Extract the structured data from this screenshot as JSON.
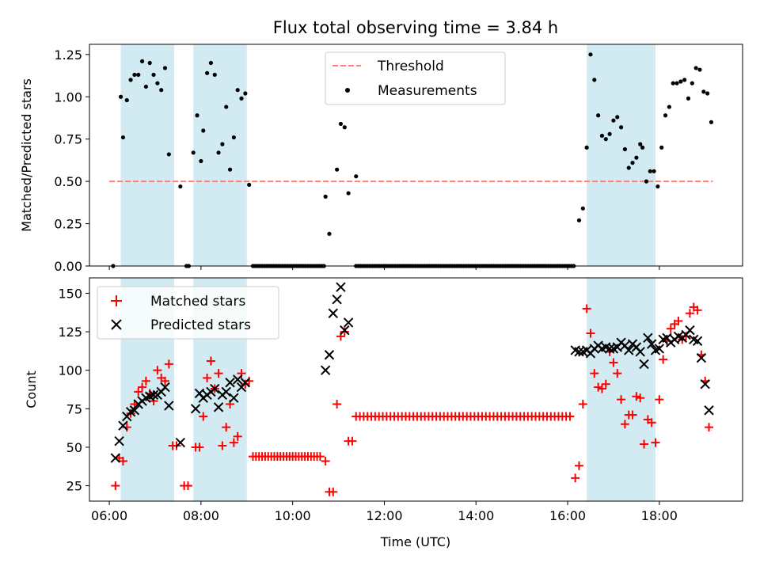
{
  "title": "Flux total observing time = 3.84 h",
  "colors": {
    "band": "#add8e6",
    "threshold": "#ff7f7f",
    "measurement": "#000000",
    "matched": "#ff0000",
    "predicted": "#000000"
  },
  "chart_data": [
    {
      "type": "scatter",
      "panel": "top",
      "ylabel": "Matched/Predicted stars",
      "ylim": [
        0,
        1.31
      ],
      "yticks": [
        "0.00",
        "0.25",
        "0.50",
        "0.75",
        "1.00",
        "1.25"
      ],
      "yticks_values": [
        0,
        0.25,
        0.5,
        0.75,
        1.0,
        1.25
      ],
      "legend_position": "top-center",
      "legend": [
        "Threshold",
        "Measurements"
      ],
      "threshold": {
        "name": "Threshold",
        "y": 0.5,
        "x": [
          "06:00",
          "19:10"
        ]
      },
      "shaded_intervals": [
        [
          "06:15",
          "07:25"
        ],
        [
          "07:50",
          "09:00"
        ],
        [
          "16:25",
          "17:55"
        ]
      ],
      "series": [
        {
          "name": "Measurements",
          "points": [
            [
              "06:05",
              0.0
            ],
            [
              "06:15",
              1.0
            ],
            [
              "06:18",
              0.76
            ],
            [
              "06:23",
              0.98
            ],
            [
              "06:28",
              1.1
            ],
            [
              "06:33",
              1.13
            ],
            [
              "06:38",
              1.13
            ],
            [
              "06:43",
              1.21
            ],
            [
              "06:48",
              1.06
            ],
            [
              "06:53",
              1.2
            ],
            [
              "06:58",
              1.13
            ],
            [
              "07:03",
              1.08
            ],
            [
              "07:08",
              1.04
            ],
            [
              "07:13",
              1.17
            ],
            [
              "07:18",
              0.66
            ],
            [
              "07:33",
              0.47
            ],
            [
              "07:41",
              0.0
            ],
            [
              "07:44",
              0.0
            ],
            [
              "07:50",
              0.67
            ],
            [
              "07:55",
              0.89
            ],
            [
              "08:00",
              0.62
            ],
            [
              "08:03",
              0.8
            ],
            [
              "08:08",
              1.14
            ],
            [
              "08:13",
              1.2
            ],
            [
              "08:18",
              1.13
            ],
            [
              "08:23",
              0.67
            ],
            [
              "08:28",
              0.72
            ],
            [
              "08:33",
              0.94
            ],
            [
              "08:38",
              0.57
            ],
            [
              "08:43",
              0.76
            ],
            [
              "08:48",
              1.04
            ],
            [
              "08:53",
              0.99
            ],
            [
              "08:58",
              1.02
            ],
            [
              "09:03",
              0.48
            ],
            [
              "10:43",
              0.41
            ],
            [
              "10:48",
              0.19
            ],
            [
              "10:58",
              0.57
            ],
            [
              "11:03",
              0.84
            ],
            [
              "11:08",
              0.82
            ],
            [
              "11:13",
              0.43
            ],
            [
              "11:23",
              0.53
            ],
            [
              "16:15",
              0.27
            ],
            [
              "16:20",
              0.34
            ],
            [
              "16:25",
              0.7
            ],
            [
              "16:30",
              1.25
            ],
            [
              "16:35",
              1.1
            ],
            [
              "16:40",
              0.89
            ],
            [
              "16:45",
              0.77
            ],
            [
              "16:50",
              0.75
            ],
            [
              "16:55",
              0.78
            ],
            [
              "17:00",
              0.86
            ],
            [
              "17:05",
              0.88
            ],
            [
              "17:10",
              0.82
            ],
            [
              "17:15",
              0.69
            ],
            [
              "17:20",
              0.58
            ],
            [
              "17:25",
              0.61
            ],
            [
              "17:30",
              0.64
            ],
            [
              "17:35",
              0.72
            ],
            [
              "17:38",
              0.7
            ],
            [
              "17:43",
              0.5
            ],
            [
              "17:48",
              0.56
            ],
            [
              "17:53",
              0.56
            ],
            [
              "17:58",
              0.47
            ],
            [
              "18:03",
              0.7
            ],
            [
              "18:08",
              0.89
            ],
            [
              "18:13",
              0.94
            ],
            [
              "18:18",
              1.08
            ],
            [
              "18:23",
              1.08
            ],
            [
              "18:28",
              1.09
            ],
            [
              "18:33",
              1.1
            ],
            [
              "18:38",
              0.99
            ],
            [
              "18:43",
              1.08
            ],
            [
              "18:48",
              1.17
            ],
            [
              "18:53",
              1.16
            ],
            [
              "18:58",
              1.03
            ],
            [
              "19:03",
              1.02
            ],
            [
              "19:08",
              0.85
            ]
          ]
        },
        {
          "name": "Measurements (zero run)",
          "x_range": [
            "09:08",
            "16:10"
          ],
          "step_min": 3,
          "y": 0.0,
          "gaps": [
            [
              "10:43",
              "11:23"
            ]
          ]
        }
      ]
    },
    {
      "type": "scatter",
      "panel": "bottom",
      "xlabel": "Time (UTC)",
      "ylabel": "Count",
      "xlim": [
        "05:34",
        "19:49"
      ],
      "xticks": [
        "06:00",
        "08:00",
        "10:00",
        "12:00",
        "14:00",
        "16:00",
        "18:00"
      ],
      "ylim": [
        15,
        160
      ],
      "yticks": [
        25,
        50,
        75,
        100,
        125,
        150
      ],
      "legend_position": "top-left",
      "legend": [
        "Matched stars",
        "Predicted stars"
      ],
      "shaded_intervals": [
        [
          "06:15",
          "07:25"
        ],
        [
          "07:50",
          "09:00"
        ],
        [
          "16:25",
          "17:55"
        ]
      ],
      "series": [
        {
          "name": "Matched stars",
          "marker": "+",
          "points": [
            [
              "06:08",
              25
            ],
            [
              "06:13",
              43
            ],
            [
              "06:18",
              41
            ],
            [
              "06:23",
              63
            ],
            [
              "06:28",
              72
            ],
            [
              "06:33",
              78
            ],
            [
              "06:38",
              86
            ],
            [
              "06:43",
              89
            ],
            [
              "06:48",
              93
            ],
            [
              "06:53",
              85
            ],
            [
              "06:58",
              80
            ],
            [
              "07:03",
              100
            ],
            [
              "07:08",
              95
            ],
            [
              "07:13",
              93
            ],
            [
              "07:18",
              104
            ],
            [
              "07:23",
              51
            ],
            [
              "07:28",
              51
            ],
            [
              "07:38",
              25
            ],
            [
              "07:43",
              25
            ],
            [
              "07:53",
              50
            ],
            [
              "07:58",
              50
            ],
            [
              "08:03",
              70
            ],
            [
              "08:08",
              95
            ],
            [
              "08:13",
              106
            ],
            [
              "08:18",
              88
            ],
            [
              "08:23",
              98
            ],
            [
              "08:28",
              51
            ],
            [
              "08:33",
              63
            ],
            [
              "08:38",
              78
            ],
            [
              "08:43",
              53
            ],
            [
              "08:48",
              57
            ],
            [
              "08:53",
              98
            ],
            [
              "08:58",
              91
            ],
            [
              "09:03",
              93
            ],
            [
              "10:43",
              41
            ],
            [
              "10:48",
              21
            ],
            [
              "10:53",
              21
            ],
            [
              "10:58",
              78
            ],
            [
              "11:03",
              122
            ],
            [
              "11:08",
              125
            ],
            [
              "11:13",
              54
            ],
            [
              "11:18",
              54
            ],
            [
              "16:10",
              30
            ],
            [
              "16:15",
              38
            ],
            [
              "16:20",
              78
            ],
            [
              "16:25",
              140
            ],
            [
              "16:30",
              124
            ],
            [
              "16:35",
              98
            ],
            [
              "16:40",
              89
            ],
            [
              "16:45",
              88
            ],
            [
              "16:50",
              91
            ],
            [
              "16:55",
              112
            ],
            [
              "17:00",
              105
            ],
            [
              "17:05",
              98
            ],
            [
              "17:10",
              81
            ],
            [
              "17:15",
              65
            ],
            [
              "17:20",
              71
            ],
            [
              "17:25",
              71
            ],
            [
              "17:30",
              83
            ],
            [
              "17:35",
              82
            ],
            [
              "17:40",
              52
            ],
            [
              "17:45",
              68
            ],
            [
              "17:50",
              66
            ],
            [
              "17:55",
              53
            ],
            [
              "18:00",
              81
            ],
            [
              "18:05",
              107
            ],
            [
              "18:10",
              119
            ],
            [
              "18:15",
              127
            ],
            [
              "18:20",
              130
            ],
            [
              "18:25",
              132
            ],
            [
              "18:30",
              120
            ],
            [
              "18:35",
              122
            ],
            [
              "18:40",
              137
            ],
            [
              "18:45",
              141
            ],
            [
              "18:50",
              139
            ],
            [
              "18:55",
              110
            ],
            [
              "19:00",
              93
            ],
            [
              "19:05",
              63
            ]
          ]
        },
        {
          "name": "Matched stars (run 1)",
          "marker": "+",
          "x_range": [
            "09:08",
            "10:38"
          ],
          "step_min": 4,
          "y": 44
        },
        {
          "name": "Matched stars (run 2)",
          "marker": "+",
          "x_range": [
            "11:23",
            "16:05"
          ],
          "step_min": 5,
          "y": 70
        },
        {
          "name": "Predicted stars",
          "marker": "x",
          "points": [
            [
              "06:08",
              43
            ],
            [
              "06:13",
              54
            ],
            [
              "06:18",
              64
            ],
            [
              "06:23",
              70
            ],
            [
              "06:28",
              73
            ],
            [
              "06:33",
              74
            ],
            [
              "06:38",
              78
            ],
            [
              "06:43",
              80
            ],
            [
              "06:48",
              82
            ],
            [
              "06:53",
              83
            ],
            [
              "06:58",
              84
            ],
            [
              "07:03",
              84
            ],
            [
              "07:08",
              86
            ],
            [
              "07:13",
              89
            ],
            [
              "07:18",
              77
            ],
            [
              "07:33",
              53
            ],
            [
              "07:53",
              75
            ],
            [
              "07:58",
              85
            ],
            [
              "08:03",
              82
            ],
            [
              "08:08",
              84
            ],
            [
              "08:13",
              86
            ],
            [
              "08:18",
              88
            ],
            [
              "08:23",
              76
            ],
            [
              "08:28",
              84
            ],
            [
              "08:33",
              86
            ],
            [
              "08:38",
              92
            ],
            [
              "08:43",
              82
            ],
            [
              "08:48",
              94
            ],
            [
              "08:53",
              89
            ],
            [
              "08:58",
              92
            ],
            [
              "10:43",
              100
            ],
            [
              "10:48",
              110
            ],
            [
              "10:53",
              137
            ],
            [
              "10:58",
              146
            ],
            [
              "11:03",
              154
            ],
            [
              "11:08",
              126
            ],
            [
              "11:13",
              131
            ],
            [
              "16:10",
              113
            ],
            [
              "16:15",
              112
            ],
            [
              "16:20",
              112
            ],
            [
              "16:25",
              113
            ],
            [
              "16:30",
              111
            ],
            [
              "16:35",
              114
            ],
            [
              "16:40",
              116
            ],
            [
              "16:45",
              114
            ],
            [
              "16:50",
              115
            ],
            [
              "16:55",
              114
            ],
            [
              "17:00",
              114
            ],
            [
              "17:05",
              115
            ],
            [
              "17:10",
              118
            ],
            [
              "17:15",
              116
            ],
            [
              "17:20",
              113
            ],
            [
              "17:25",
              117
            ],
            [
              "17:30",
              115
            ],
            [
              "17:35",
              112
            ],
            [
              "17:40",
              104
            ],
            [
              "17:45",
              121
            ],
            [
              "17:50",
              117
            ],
            [
              "17:55",
              113
            ],
            [
              "18:00",
              114
            ],
            [
              "18:05",
              120
            ],
            [
              "18:10",
              121
            ],
            [
              "18:15",
              118
            ],
            [
              "18:20",
              120
            ],
            [
              "18:25",
              122
            ],
            [
              "18:30",
              121
            ],
            [
              "18:35",
              123
            ],
            [
              "18:40",
              126
            ],
            [
              "18:45",
              120
            ],
            [
              "18:50",
              119
            ],
            [
              "18:55",
              108
            ],
            [
              "19:00",
              91
            ],
            [
              "19:05",
              74
            ]
          ]
        }
      ]
    }
  ]
}
